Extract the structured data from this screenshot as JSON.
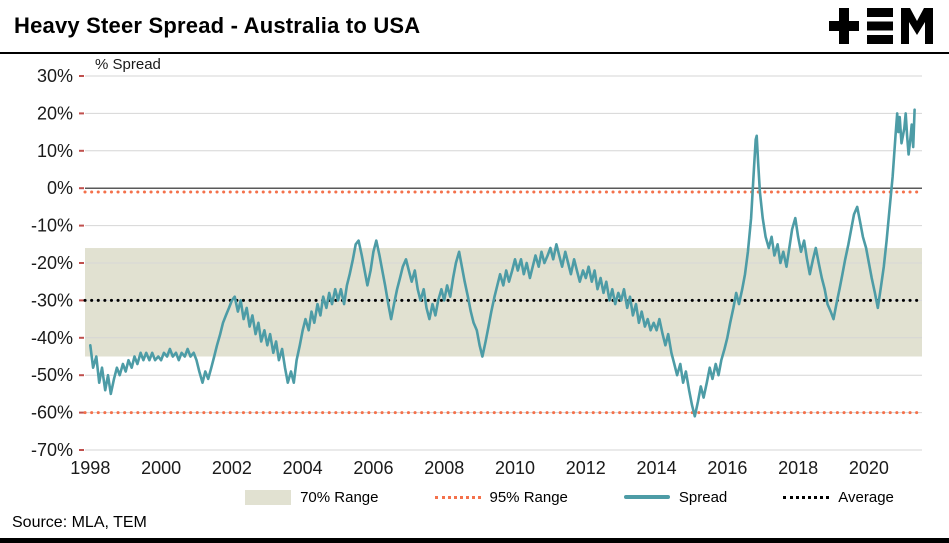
{
  "source": {
    "label": "Source: MLA, TEM"
  },
  "logo": {
    "name": "TEM"
  },
  "chart_data": {
    "type": "line",
    "title": "Heavy Steer Spread - Australia to USA",
    "ylabel": "% Spread",
    "xlabel": "",
    "ylim": [
      -70,
      30
    ],
    "xlim": [
      1997.85,
      2021.5
    ],
    "grid": "horizontal",
    "legend_position": "bottom",
    "y_ticks": [
      30,
      20,
      10,
      0,
      -10,
      -20,
      -30,
      -40,
      -50,
      -60,
      -70
    ],
    "x_ticks": [
      1998,
      2000,
      2002,
      2004,
      2006,
      2008,
      2010,
      2012,
      2014,
      2016,
      2018,
      2020
    ],
    "band_70_range": {
      "lower": -45,
      "upper": -16
    },
    "range_95": {
      "lower": -60,
      "upper": -1
    },
    "average": -30,
    "zero_line": 0,
    "colors": {
      "band": "#e1e1d1",
      "range95": "#f4714b",
      "spread": "#4d9ca6",
      "average": "#000000",
      "grid": "#d6d6d6",
      "zero": "#595959",
      "tick": "#c0504d"
    },
    "legend": [
      {
        "label": "70% Range",
        "type": "band"
      },
      {
        "label": "95% Range",
        "type": "dotted"
      },
      {
        "label": "Spread",
        "type": "line"
      },
      {
        "label": "Average",
        "type": "dotted"
      }
    ],
    "series": [
      {
        "name": "Spread",
        "points": [
          [
            1998.0,
            -42
          ],
          [
            1998.08,
            -48
          ],
          [
            1998.17,
            -45
          ],
          [
            1998.25,
            -52
          ],
          [
            1998.33,
            -48
          ],
          [
            1998.42,
            -54
          ],
          [
            1998.5,
            -50
          ],
          [
            1998.58,
            -55
          ],
          [
            1998.67,
            -51
          ],
          [
            1998.75,
            -48
          ],
          [
            1998.83,
            -50
          ],
          [
            1998.92,
            -47
          ],
          [
            1999.0,
            -49
          ],
          [
            1999.08,
            -46
          ],
          [
            1999.17,
            -48
          ],
          [
            1999.25,
            -45
          ],
          [
            1999.33,
            -47
          ],
          [
            1999.42,
            -44
          ],
          [
            1999.5,
            -46
          ],
          [
            1999.58,
            -44
          ],
          [
            1999.67,
            -46
          ],
          [
            1999.75,
            -44
          ],
          [
            1999.83,
            -46
          ],
          [
            1999.92,
            -45
          ],
          [
            2000.0,
            -46
          ],
          [
            2000.08,
            -44
          ],
          [
            2000.17,
            -45
          ],
          [
            2000.25,
            -43
          ],
          [
            2000.33,
            -45
          ],
          [
            2000.42,
            -44
          ],
          [
            2000.5,
            -46
          ],
          [
            2000.58,
            -44
          ],
          [
            2000.67,
            -45
          ],
          [
            2000.75,
            -43
          ],
          [
            2000.83,
            -45
          ],
          [
            2000.92,
            -44
          ],
          [
            2001.0,
            -46
          ],
          [
            2001.08,
            -49
          ],
          [
            2001.17,
            -52
          ],
          [
            2001.25,
            -49
          ],
          [
            2001.33,
            -51
          ],
          [
            2001.42,
            -48
          ],
          [
            2001.5,
            -45
          ],
          [
            2001.58,
            -42
          ],
          [
            2001.67,
            -39
          ],
          [
            2001.75,
            -36
          ],
          [
            2001.83,
            -34
          ],
          [
            2001.92,
            -32
          ],
          [
            2002.0,
            -30
          ],
          [
            2002.08,
            -29
          ],
          [
            2002.17,
            -33
          ],
          [
            2002.25,
            -30
          ],
          [
            2002.33,
            -35
          ],
          [
            2002.42,
            -32
          ],
          [
            2002.5,
            -37
          ],
          [
            2002.58,
            -34
          ],
          [
            2002.67,
            -39
          ],
          [
            2002.75,
            -36
          ],
          [
            2002.83,
            -41
          ],
          [
            2002.92,
            -38
          ],
          [
            2003.0,
            -42
          ],
          [
            2003.08,
            -39
          ],
          [
            2003.17,
            -44
          ],
          [
            2003.25,
            -41
          ],
          [
            2003.33,
            -46
          ],
          [
            2003.42,
            -43
          ],
          [
            2003.5,
            -48
          ],
          [
            2003.58,
            -52
          ],
          [
            2003.67,
            -49
          ],
          [
            2003.75,
            -52
          ],
          [
            2003.83,
            -46
          ],
          [
            2003.92,
            -42
          ],
          [
            2004.0,
            -38
          ],
          [
            2004.08,
            -35
          ],
          [
            2004.17,
            -38
          ],
          [
            2004.25,
            -33
          ],
          [
            2004.33,
            -36
          ],
          [
            2004.42,
            -31
          ],
          [
            2004.5,
            -34
          ],
          [
            2004.58,
            -29
          ],
          [
            2004.67,
            -32
          ],
          [
            2004.75,
            -28
          ],
          [
            2004.83,
            -31
          ],
          [
            2004.92,
            -27
          ],
          [
            2005.0,
            -30
          ],
          [
            2005.08,
            -27
          ],
          [
            2005.17,
            -31
          ],
          [
            2005.25,
            -26
          ],
          [
            2005.33,
            -23
          ],
          [
            2005.42,
            -19
          ],
          [
            2005.5,
            -15
          ],
          [
            2005.58,
            -14
          ],
          [
            2005.67,
            -18
          ],
          [
            2005.75,
            -22
          ],
          [
            2005.83,
            -26
          ],
          [
            2005.92,
            -22
          ],
          [
            2006.0,
            -17
          ],
          [
            2006.08,
            -14
          ],
          [
            2006.17,
            -18
          ],
          [
            2006.25,
            -22
          ],
          [
            2006.33,
            -26
          ],
          [
            2006.42,
            -31
          ],
          [
            2006.5,
            -35
          ],
          [
            2006.58,
            -31
          ],
          [
            2006.67,
            -27
          ],
          [
            2006.75,
            -24
          ],
          [
            2006.83,
            -21
          ],
          [
            2006.92,
            -19
          ],
          [
            2007.0,
            -22
          ],
          [
            2007.08,
            -25
          ],
          [
            2007.17,
            -22
          ],
          [
            2007.25,
            -27
          ],
          [
            2007.33,
            -30
          ],
          [
            2007.42,
            -27
          ],
          [
            2007.5,
            -32
          ],
          [
            2007.58,
            -35
          ],
          [
            2007.67,
            -31
          ],
          [
            2007.75,
            -34
          ],
          [
            2007.83,
            -30
          ],
          [
            2007.92,
            -27
          ],
          [
            2008.0,
            -30
          ],
          [
            2008.08,
            -26
          ],
          [
            2008.17,
            -29
          ],
          [
            2008.25,
            -24
          ],
          [
            2008.33,
            -20
          ],
          [
            2008.42,
            -17
          ],
          [
            2008.5,
            -21
          ],
          [
            2008.58,
            -25
          ],
          [
            2008.67,
            -29
          ],
          [
            2008.75,
            -33
          ],
          [
            2008.83,
            -36
          ],
          [
            2008.92,
            -38
          ],
          [
            2009.0,
            -42
          ],
          [
            2009.08,
            -45
          ],
          [
            2009.17,
            -41
          ],
          [
            2009.25,
            -37
          ],
          [
            2009.33,
            -33
          ],
          [
            2009.42,
            -29
          ],
          [
            2009.5,
            -26
          ],
          [
            2009.58,
            -23
          ],
          [
            2009.67,
            -26
          ],
          [
            2009.75,
            -22
          ],
          [
            2009.83,
            -25
          ],
          [
            2009.92,
            -22
          ],
          [
            2010.0,
            -19
          ],
          [
            2010.08,
            -22
          ],
          [
            2010.17,
            -19
          ],
          [
            2010.25,
            -23
          ],
          [
            2010.33,
            -20
          ],
          [
            2010.42,
            -24
          ],
          [
            2010.5,
            -21
          ],
          [
            2010.58,
            -18
          ],
          [
            2010.67,
            -21
          ],
          [
            2010.75,
            -17
          ],
          [
            2010.83,
            -20
          ],
          [
            2010.92,
            -18
          ],
          [
            2011.0,
            -16
          ],
          [
            2011.08,
            -19
          ],
          [
            2011.17,
            -15
          ],
          [
            2011.25,
            -18
          ],
          [
            2011.33,
            -21
          ],
          [
            2011.42,
            -17
          ],
          [
            2011.5,
            -20
          ],
          [
            2011.58,
            -23
          ],
          [
            2011.67,
            -19
          ],
          [
            2011.75,
            -22
          ],
          [
            2011.83,
            -25
          ],
          [
            2011.92,
            -22
          ],
          [
            2012.0,
            -24
          ],
          [
            2012.08,
            -21
          ],
          [
            2012.17,
            -25
          ],
          [
            2012.25,
            -22
          ],
          [
            2012.33,
            -27
          ],
          [
            2012.42,
            -24
          ],
          [
            2012.5,
            -28
          ],
          [
            2012.58,
            -25
          ],
          [
            2012.67,
            -30
          ],
          [
            2012.75,
            -27
          ],
          [
            2012.83,
            -31
          ],
          [
            2012.92,
            -28
          ],
          [
            2013.0,
            -30
          ],
          [
            2013.08,
            -27
          ],
          [
            2013.17,
            -32
          ],
          [
            2013.25,
            -29
          ],
          [
            2013.33,
            -34
          ],
          [
            2013.42,
            -31
          ],
          [
            2013.5,
            -36
          ],
          [
            2013.58,
            -33
          ],
          [
            2013.67,
            -37
          ],
          [
            2013.75,
            -35
          ],
          [
            2013.83,
            -38
          ],
          [
            2013.92,
            -36
          ],
          [
            2014.0,
            -38
          ],
          [
            2014.08,
            -35
          ],
          [
            2014.17,
            -39
          ],
          [
            2014.25,
            -42
          ],
          [
            2014.33,
            -39
          ],
          [
            2014.42,
            -44
          ],
          [
            2014.5,
            -47
          ],
          [
            2014.58,
            -50
          ],
          [
            2014.67,
            -47
          ],
          [
            2014.75,
            -52
          ],
          [
            2014.83,
            -49
          ],
          [
            2014.92,
            -54
          ],
          [
            2015.0,
            -58
          ],
          [
            2015.08,
            -61
          ],
          [
            2015.17,
            -57
          ],
          [
            2015.25,
            -53
          ],
          [
            2015.33,
            -56
          ],
          [
            2015.42,
            -52
          ],
          [
            2015.5,
            -48
          ],
          [
            2015.58,
            -51
          ],
          [
            2015.67,
            -47
          ],
          [
            2015.75,
            -50
          ],
          [
            2015.83,
            -46
          ],
          [
            2015.92,
            -43
          ],
          [
            2016.0,
            -40
          ],
          [
            2016.08,
            -36
          ],
          [
            2016.17,
            -32
          ],
          [
            2016.25,
            -28
          ],
          [
            2016.33,
            -31
          ],
          [
            2016.42,
            -27
          ],
          [
            2016.5,
            -23
          ],
          [
            2016.58,
            -17
          ],
          [
            2016.67,
            -8
          ],
          [
            2016.75,
            5
          ],
          [
            2016.8,
            13
          ],
          [
            2016.83,
            14
          ],
          [
            2016.87,
            7
          ],
          [
            2016.92,
            -1
          ],
          [
            2017.0,
            -8
          ],
          [
            2017.08,
            -13
          ],
          [
            2017.17,
            -16
          ],
          [
            2017.25,
            -13
          ],
          [
            2017.33,
            -18
          ],
          [
            2017.42,
            -15
          ],
          [
            2017.5,
            -20
          ],
          [
            2017.58,
            -17
          ],
          [
            2017.67,
            -21
          ],
          [
            2017.75,
            -16
          ],
          [
            2017.83,
            -11
          ],
          [
            2017.92,
            -8
          ],
          [
            2018.0,
            -13
          ],
          [
            2018.08,
            -17
          ],
          [
            2018.17,
            -14
          ],
          [
            2018.25,
            -19
          ],
          [
            2018.33,
            -23
          ],
          [
            2018.42,
            -19
          ],
          [
            2018.5,
            -16
          ],
          [
            2018.58,
            -20
          ],
          [
            2018.67,
            -24
          ],
          [
            2018.75,
            -27
          ],
          [
            2018.83,
            -31
          ],
          [
            2018.92,
            -33
          ],
          [
            2019.0,
            -35
          ],
          [
            2019.08,
            -31
          ],
          [
            2019.17,
            -27
          ],
          [
            2019.25,
            -23
          ],
          [
            2019.33,
            -19
          ],
          [
            2019.42,
            -15
          ],
          [
            2019.5,
            -11
          ],
          [
            2019.58,
            -7
          ],
          [
            2019.67,
            -5
          ],
          [
            2019.75,
            -9
          ],
          [
            2019.83,
            -13
          ],
          [
            2019.92,
            -16
          ],
          [
            2020.0,
            -20
          ],
          [
            2020.08,
            -24
          ],
          [
            2020.17,
            -28
          ],
          [
            2020.25,
            -32
          ],
          [
            2020.33,
            -27
          ],
          [
            2020.42,
            -21
          ],
          [
            2020.5,
            -14
          ],
          [
            2020.58,
            -6
          ],
          [
            2020.67,
            3
          ],
          [
            2020.75,
            14
          ],
          [
            2020.8,
            20
          ],
          [
            2020.83,
            15
          ],
          [
            2020.87,
            19
          ],
          [
            2020.92,
            12
          ],
          [
            2021.0,
            16
          ],
          [
            2021.04,
            20
          ],
          [
            2021.08,
            14
          ],
          [
            2021.12,
            9
          ],
          [
            2021.17,
            13
          ],
          [
            2021.21,
            17
          ],
          [
            2021.25,
            11
          ],
          [
            2021.29,
            21
          ]
        ]
      }
    ]
  }
}
